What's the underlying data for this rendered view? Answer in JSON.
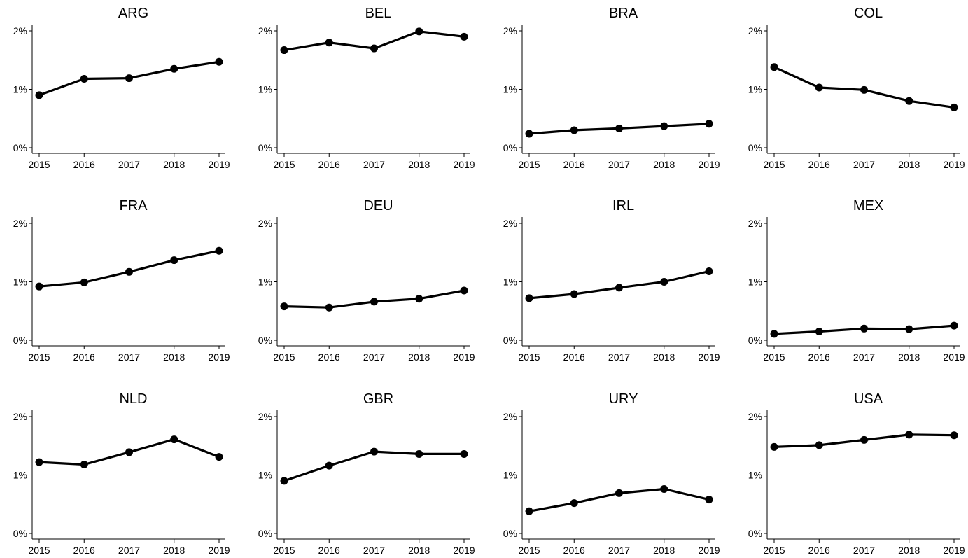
{
  "chart_data": [
    {
      "type": "line",
      "title": "ARG",
      "categories": [
        "2015",
        "2016",
        "2017",
        "2018",
        "2019"
      ],
      "values": [
        0.9,
        1.18,
        1.19,
        1.35,
        1.47
      ],
      "yticks": [
        "0%",
        "1%",
        "2%"
      ],
      "ylim": [
        0,
        2
      ],
      "colors": {
        "line": "#000000"
      }
    },
    {
      "type": "line",
      "title": "BEL",
      "categories": [
        "2015",
        "2016",
        "2017",
        "2018",
        "2019"
      ],
      "values": [
        1.67,
        1.8,
        1.7,
        1.99,
        1.9
      ],
      "yticks": [
        "0%",
        "1%",
        "2%"
      ],
      "ylim": [
        0,
        2
      ],
      "colors": {
        "line": "#000000"
      }
    },
    {
      "type": "line",
      "title": "BRA",
      "categories": [
        "2015",
        "2016",
        "2017",
        "2018",
        "2019"
      ],
      "values": [
        0.24,
        0.3,
        0.33,
        0.37,
        0.41
      ],
      "yticks": [
        "0%",
        "1%",
        "2%"
      ],
      "ylim": [
        0,
        2
      ],
      "colors": {
        "line": "#000000"
      }
    },
    {
      "type": "line",
      "title": "COL",
      "categories": [
        "2015",
        "2016",
        "2017",
        "2018",
        "2019"
      ],
      "values": [
        1.38,
        1.03,
        0.99,
        0.8,
        0.69
      ],
      "yticks": [
        "0%",
        "1%",
        "2%"
      ],
      "ylim": [
        0,
        2
      ],
      "colors": {
        "line": "#000000"
      }
    },
    {
      "type": "line",
      "title": "FRA",
      "categories": [
        "2015",
        "2016",
        "2017",
        "2018",
        "2019"
      ],
      "values": [
        0.92,
        0.99,
        1.17,
        1.37,
        1.53
      ],
      "yticks": [
        "0%",
        "1%",
        "2%"
      ],
      "ylim": [
        0,
        2
      ],
      "colors": {
        "line": "#000000"
      }
    },
    {
      "type": "line",
      "title": "DEU",
      "categories": [
        "2015",
        "2016",
        "2017",
        "2018",
        "2019"
      ],
      "values": [
        0.58,
        0.56,
        0.66,
        0.71,
        0.85
      ],
      "yticks": [
        "0%",
        "1%",
        "2%"
      ],
      "ylim": [
        0,
        2
      ],
      "colors": {
        "line": "#000000"
      }
    },
    {
      "type": "line",
      "title": "IRL",
      "categories": [
        "2015",
        "2016",
        "2017",
        "2018",
        "2019"
      ],
      "values": [
        0.72,
        0.79,
        0.9,
        1.0,
        1.18
      ],
      "yticks": [
        "0%",
        "1%",
        "2%"
      ],
      "ylim": [
        0,
        2
      ],
      "colors": {
        "line": "#000000"
      }
    },
    {
      "type": "line",
      "title": "MEX",
      "categories": [
        "2015",
        "2016",
        "2017",
        "2018",
        "2019"
      ],
      "values": [
        0.11,
        0.15,
        0.2,
        0.19,
        0.25
      ],
      "yticks": [
        "0%",
        "1%",
        "2%"
      ],
      "ylim": [
        0,
        2
      ],
      "colors": {
        "line": "#000000"
      }
    },
    {
      "type": "line",
      "title": "NLD",
      "categories": [
        "2015",
        "2016",
        "2017",
        "2018",
        "2019"
      ],
      "values": [
        1.22,
        1.18,
        1.39,
        1.61,
        1.31
      ],
      "yticks": [
        "0%",
        "1%",
        "2%"
      ],
      "ylim": [
        0,
        2
      ],
      "colors": {
        "line": "#000000"
      }
    },
    {
      "type": "line",
      "title": "GBR",
      "categories": [
        "2015",
        "2016",
        "2017",
        "2018",
        "2019"
      ],
      "values": [
        0.9,
        1.16,
        1.4,
        1.36,
        1.36
      ],
      "yticks": [
        "0%",
        "1%",
        "2%"
      ],
      "ylim": [
        0,
        2
      ],
      "colors": {
        "line": "#000000"
      }
    },
    {
      "type": "line",
      "title": "URY",
      "categories": [
        "2015",
        "2016",
        "2017",
        "2018",
        "2019"
      ],
      "values": [
        0.38,
        0.52,
        0.69,
        0.76,
        0.58
      ],
      "yticks": [
        "0%",
        "1%",
        "2%"
      ],
      "ylim": [
        0,
        2
      ],
      "colors": {
        "line": "#000000"
      }
    },
    {
      "type": "line",
      "title": "USA",
      "categories": [
        "2015",
        "2016",
        "2017",
        "2018",
        "2019"
      ],
      "values": [
        1.48,
        1.51,
        1.6,
        1.69,
        1.68
      ],
      "yticks": [
        "0%",
        "1%",
        "2%"
      ],
      "ylim": [
        0,
        2
      ],
      "colors": {
        "line": "#000000"
      }
    }
  ]
}
